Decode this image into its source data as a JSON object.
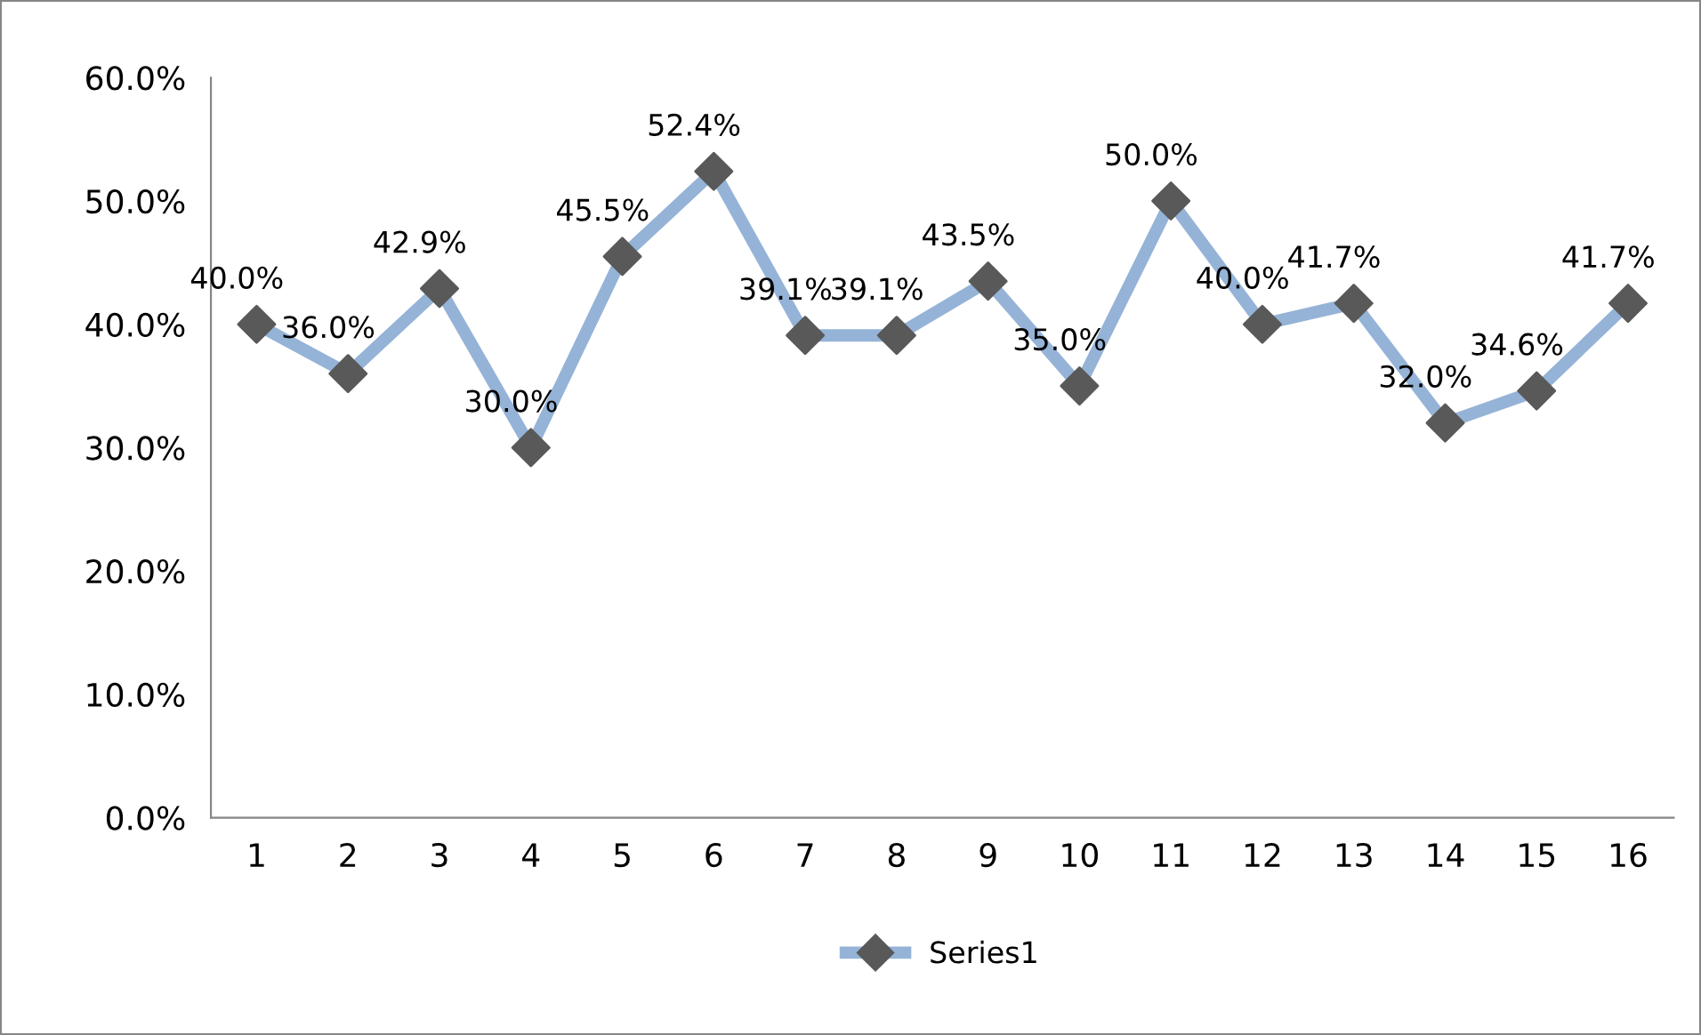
{
  "chart_data": {
    "type": "line",
    "categories": [
      "1",
      "2",
      "3",
      "4",
      "5",
      "6",
      "7",
      "8",
      "9",
      "10",
      "11",
      "12",
      "13",
      "14",
      "15",
      "16"
    ],
    "series": [
      {
        "name": "Series1",
        "color": "#95b3d7",
        "colors": [
          "#595959",
          "#595959",
          "#595959",
          "#595959",
          "#595959",
          "#595959",
          "#595959",
          "#595959",
          "#595959",
          "#595959",
          "#595959",
          "#595959",
          "#595959",
          "#595959",
          "#595959",
          "#595959"
        ],
        "values": [
          40.0,
          36.0,
          42.9,
          30.0,
          45.5,
          52.4,
          39.1,
          39.1,
          43.5,
          35.0,
          50.0,
          40.0,
          41.7,
          32.0,
          34.6,
          41.7
        ],
        "value_labels": [
          "40.0%",
          "36.0%",
          "42.9%",
          "30.0%",
          "45.5%",
          "52.4%",
          "39.1%",
          "39.1%",
          "43.5%",
          "35.0%",
          "50.0%",
          "40.0%",
          "41.7%",
          "32.0%",
          "34.6%",
          "41.7%"
        ]
      }
    ],
    "ylim": [
      0,
      60
    ],
    "yticks": [
      {
        "value": 0,
        "label": "0.0%"
      },
      {
        "value": 10,
        "label": "10.0%"
      },
      {
        "value": 20,
        "label": "20.0%"
      },
      {
        "value": 30,
        "label": "30.0%"
      },
      {
        "value": 40,
        "label": "40.0%"
      },
      {
        "value": 50,
        "label": "50.0%"
      },
      {
        "value": 60,
        "label": "60.0%"
      }
    ],
    "grid": false,
    "legend": "bottom",
    "marker": "diamond",
    "line_style": "solid"
  }
}
